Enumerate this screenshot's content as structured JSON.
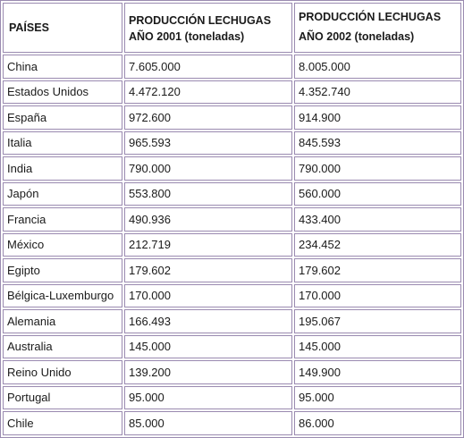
{
  "table": {
    "headers": {
      "country": "PAÍSES",
      "year2001_line1": "PRODUCCIÓN LECHUGAS",
      "year2001_line2": "AÑO 2001 (toneladas)",
      "year2002_line1": "PRODUCCIÓN LECHUGAS",
      "year2002_line2": "AÑO 2002 (toneladas)"
    },
    "rows": [
      {
        "country": "China",
        "y2001": "7.605.000",
        "y2002": "8.005.000"
      },
      {
        "country": "Estados Unidos",
        "y2001": "4.472.120",
        "y2002": "4.352.740"
      },
      {
        "country": "España",
        "y2001": "972.600",
        "y2002": "914.900"
      },
      {
        "country": "Italia",
        "y2001": "965.593",
        "y2002": "845.593"
      },
      {
        "country": "India",
        "y2001": "790.000",
        "y2002": "790.000"
      },
      {
        "country": "Japón",
        "y2001": "553.800",
        "y2002": "560.000"
      },
      {
        "country": "Francia",
        "y2001": "490.936",
        "y2002": "433.400"
      },
      {
        "country": "México",
        "y2001": "212.719",
        "y2002": "234.452"
      },
      {
        "country": "Egipto",
        "y2001": "179.602",
        "y2002": "179.602"
      },
      {
        "country": "Bélgica-Luxemburgo",
        "y2001": "170.000",
        "y2002": "170.000"
      },
      {
        "country": "Alemania",
        "y2001": "166.493",
        "y2002": "195.067"
      },
      {
        "country": "Australia",
        "y2001": "145.000",
        "y2002": "145.000"
      },
      {
        "country": "Reino Unido",
        "y2001": "139.200",
        "y2002": "149.900"
      },
      {
        "country": "Portugal",
        "y2001": "95.000",
        "y2002": "95.000"
      },
      {
        "country": "Chile",
        "y2001": "85.000",
        "y2002": "86.000"
      }
    ]
  }
}
